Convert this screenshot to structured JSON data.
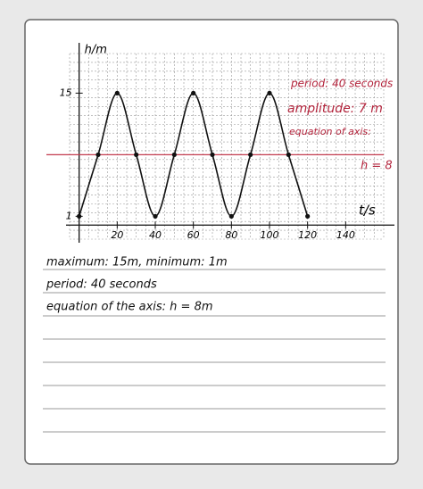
{
  "chart_data": {
    "type": "line",
    "y_label": "h/m",
    "x_label": "t/s",
    "x": [
      0,
      10,
      20,
      30,
      40,
      50,
      60,
      70,
      80,
      90,
      100,
      110,
      120
    ],
    "series": [
      {
        "color": "#111111",
        "values": [
          1,
          8,
          15,
          8,
          1,
          8,
          15,
          8,
          1,
          8,
          15,
          8,
          1
        ]
      }
    ],
    "xlim": [
      -5,
      160
    ],
    "ylim": [
      -1.6,
      19.5
    ],
    "xticks": [
      20,
      40,
      60,
      80,
      100,
      120,
      140
    ],
    "yticks": [
      1,
      15
    ],
    "reference_line": {
      "value": 8,
      "color": "#c23a4e"
    },
    "annotations": [
      "period: 40 seconds",
      "amplitude: 7 m",
      "equation of axis:",
      "h = 8"
    ],
    "annotation_color": "#b3243c",
    "grid": true
  },
  "notes": [
    "maximum: 15m,  minimum: 1m",
    "period: 40 seconds",
    "equation of the axis: h = 8m"
  ]
}
